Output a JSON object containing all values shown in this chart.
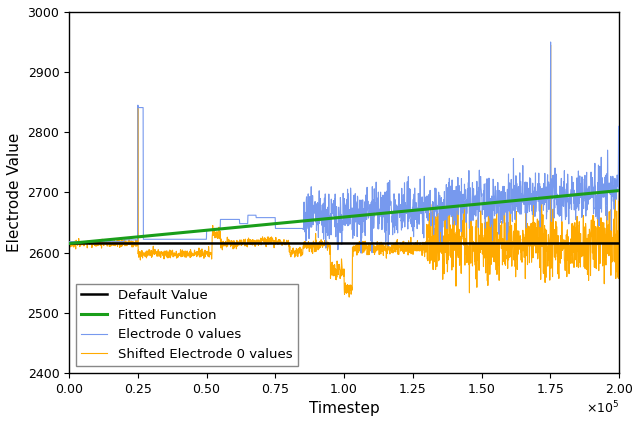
{
  "x_min": 0,
  "x_max": 200000,
  "y_min": 2400,
  "y_max": 3000,
  "default_value": 2615,
  "fit_start": 2615,
  "fit_end": 2703,
  "xlabel": "Timestep",
  "ylabel": "Electrode Value",
  "legend_labels": [
    "Default Value",
    "Fitted Function",
    "Electrode 0 values",
    "Shifted Electrode 0 values"
  ],
  "colors": {
    "default": "#000000",
    "fitted": "#1a9e1a",
    "electrode": "#7799ee",
    "shifted": "#ffaa00"
  },
  "seed": 42,
  "figsize": [
    6.4,
    4.23
  ],
  "dpi": 100
}
